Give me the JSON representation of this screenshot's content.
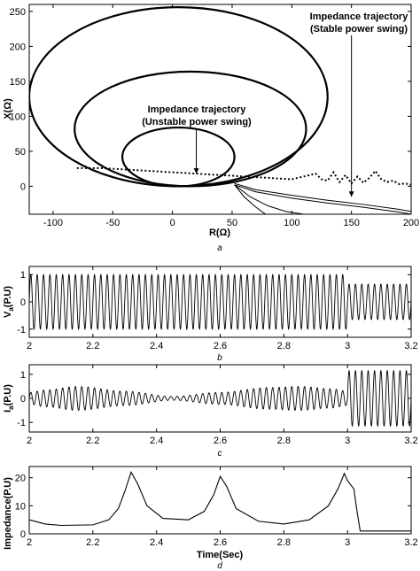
{
  "chart_data": [
    {
      "panel": "a",
      "type": "line",
      "caption": "a",
      "xlabel": "R(Ω)",
      "ylabel": "X(Ω)",
      "xlim": [
        -120,
        200
      ],
      "ylim": [
        -40,
        260
      ],
      "xticks": [
        -100,
        -50,
        0,
        50,
        100,
        150,
        200
      ],
      "yticks": [
        0,
        50,
        100,
        150,
        200,
        250
      ],
      "grid": false,
      "ellipses": [
        {
          "cx": 5,
          "cy": 42,
          "rx": 47,
          "ry": 42
        },
        {
          "cx": 15,
          "cy": 82,
          "rx": 97,
          "ry": 82
        },
        {
          "cx": 5,
          "cy": 128,
          "rx": 125,
          "ry": 128
        }
      ],
      "dotted_trajectory": {
        "x": [
          -80,
          -60,
          -40,
          -20,
          0,
          20,
          40,
          60,
          80,
          100,
          110,
          120,
          125,
          130,
          135,
          140,
          145,
          150,
          155,
          160,
          165,
          170,
          175,
          180,
          185,
          190,
          195,
          200
        ],
        "y": [
          26,
          26,
          24,
          22,
          20,
          18,
          16,
          14,
          12,
          10,
          14,
          18,
          10,
          8,
          20,
          6,
          16,
          4,
          14,
          5,
          12,
          22,
          10,
          6,
          8,
          3,
          4,
          2
        ]
      },
      "solid_trajectories": [
        {
          "x": [
            52,
            70,
            100,
            130,
            160,
            190,
            200
          ],
          "y": [
            4,
            -5,
            -13,
            -20,
            -26,
            -33,
            -36
          ]
        },
        {
          "x": [
            52,
            70,
            100,
            130,
            160,
            190,
            200
          ],
          "y": [
            2,
            -8,
            -17,
            -24,
            -30,
            -37,
            -40
          ]
        },
        {
          "x": [
            52,
            65,
            80,
            95,
            110
          ],
          "y": [
            2,
            -15,
            -28,
            -36,
            -40
          ]
        },
        {
          "x": [
            52,
            60,
            70,
            78
          ],
          "y": [
            2,
            -15,
            -30,
            -40
          ]
        }
      ],
      "annotations": [
        {
          "lines": [
            "Impedance trajectory",
            "(Stable power swing)"
          ],
          "arrow_to": [
            150,
            -15
          ]
        },
        {
          "lines": [
            "Impedance trajectory",
            "(Unstable power swing)"
          ],
          "arrow_to": [
            20,
            18
          ]
        }
      ]
    },
    {
      "panel": "b",
      "type": "line",
      "caption": "b",
      "xlabel": "",
      "ylabel": "Va(P.U)",
      "ylabel_main": "V",
      "ylabel_sub": "a",
      "ylabel_rest": "(P.U)",
      "xlim": [
        2,
        3.2
      ],
      "ylim": [
        -1.3,
        1.3
      ],
      "xticks": [
        "2",
        "2.2",
        "2.4",
        "2.6",
        "2.8",
        "3",
        "3.2"
      ],
      "yticks": [
        -1,
        0,
        1
      ],
      "signal": {
        "frequency_hz": 50,
        "t_switch": 3.0,
        "amp_before": 1.0,
        "amp_after": 0.65
      }
    },
    {
      "panel": "c",
      "type": "line",
      "caption": "c",
      "xlabel": "",
      "ylabel": "Ia(P.U)",
      "ylabel_main": "I",
      "ylabel_sub": "a",
      "ylabel_rest": "(P.U)",
      "xlim": [
        2,
        3.2
      ],
      "ylim": [
        -1.4,
        1.4
      ],
      "xticks": [
        "2",
        "2.2",
        "2.4",
        "2.6",
        "2.8",
        "3",
        "3.2"
      ],
      "yticks": [
        -1,
        0,
        1
      ],
      "signal": {
        "frequency_hz": 50,
        "envelope": {
          "t": [
            2.0,
            2.05,
            2.15,
            2.3,
            2.45,
            2.6,
            2.75,
            2.85,
            2.95,
            3.0
          ],
          "a": [
            0.25,
            0.35,
            0.5,
            0.3,
            0.08,
            0.25,
            0.45,
            0.5,
            0.4,
            0.3
          ]
        },
        "t_switch": 3.0,
        "amp_after": 1.15
      }
    },
    {
      "panel": "d",
      "type": "line",
      "caption": "d",
      "xlabel": "Time(Sec)",
      "ylabel": "Impedance(P.U)",
      "xlim": [
        2,
        3.2
      ],
      "ylim": [
        0,
        24
      ],
      "xticks": [
        "2",
        "2.2",
        "2.4",
        "2.6",
        "2.8",
        "3",
        "3.2"
      ],
      "yticks": [
        0,
        10,
        20
      ],
      "series": {
        "x": [
          2.0,
          2.05,
          2.1,
          2.2,
          2.25,
          2.28,
          2.3,
          2.32,
          2.34,
          2.37,
          2.42,
          2.5,
          2.55,
          2.58,
          2.6,
          2.62,
          2.65,
          2.72,
          2.8,
          2.88,
          2.94,
          2.97,
          2.99,
          3.0,
          3.02,
          3.03,
          3.04,
          3.1,
          3.2
        ],
        "y": [
          5.0,
          3.5,
          3.0,
          3.2,
          5.0,
          9.0,
          15.0,
          22.0,
          18.0,
          10.0,
          5.5,
          5.0,
          8.0,
          14.0,
          20.5,
          17.0,
          9.0,
          4.5,
          3.5,
          5.0,
          10.0,
          16.0,
          21.5,
          19.0,
          16.0,
          8.0,
          1.0,
          1.0,
          1.0
        ]
      }
    }
  ]
}
